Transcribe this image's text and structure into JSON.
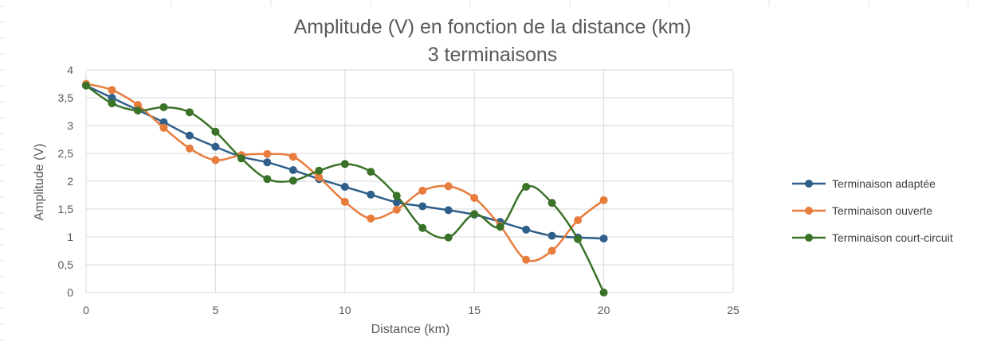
{
  "chart_data": {
    "type": "line",
    "title": "Amplitude (V) en fonction de la distance (km)",
    "subtitle": "3 terminaisons",
    "xlabel": "Distance (km)",
    "ylabel": "Amplitude (V)",
    "xlim": [
      0,
      25
    ],
    "ylim": [
      0,
      4
    ],
    "x_ticks": [
      0,
      5,
      10,
      15,
      20,
      25
    ],
    "y_ticks": [
      0,
      0.5,
      1,
      1.5,
      2,
      2.5,
      3,
      3.5,
      4
    ],
    "x_tick_labels": [
      "0",
      "5",
      "10",
      "15",
      "20",
      "25"
    ],
    "y_tick_labels": [
      "0",
      "0,5",
      "1",
      "1,5",
      "2",
      "2,5",
      "3",
      "3,5",
      "4"
    ],
    "grid": true,
    "smooth": true,
    "legend_position": "right",
    "x": [
      0,
      1,
      2,
      3,
      4,
      5,
      6,
      7,
      8,
      9,
      10,
      11,
      12,
      13,
      14,
      15,
      16,
      17,
      18,
      19,
      20
    ],
    "series": [
      {
        "name": "Terminaison adaptée",
        "color": "#2f5f8a",
        "values": [
          3.72,
          3.5,
          3.28,
          3.06,
          2.82,
          2.62,
          2.44,
          2.34,
          2.2,
          2.04,
          1.9,
          1.76,
          1.62,
          1.55,
          1.48,
          1.4,
          1.27,
          1.13,
          1.02,
          0.99,
          0.97
        ]
      },
      {
        "name": "Terminaison ouverte",
        "color": "#e77c3c",
        "values": [
          3.75,
          3.64,
          3.37,
          2.96,
          2.59,
          2.38,
          2.47,
          2.49,
          2.44,
          2.07,
          1.63,
          1.33,
          1.49,
          1.83,
          1.91,
          1.7,
          1.2,
          0.59,
          0.75,
          1.3,
          1.66
        ]
      },
      {
        "name": "Terminaison court-circuit",
        "color": "#3a7228",
        "values": [
          3.72,
          3.4,
          3.27,
          3.33,
          3.24,
          2.89,
          2.41,
          2.04,
          2.01,
          2.19,
          2.31,
          2.17,
          1.74,
          1.16,
          0.99,
          1.41,
          1.18,
          1.9,
          1.61,
          0.96,
          0.0
        ]
      }
    ]
  }
}
